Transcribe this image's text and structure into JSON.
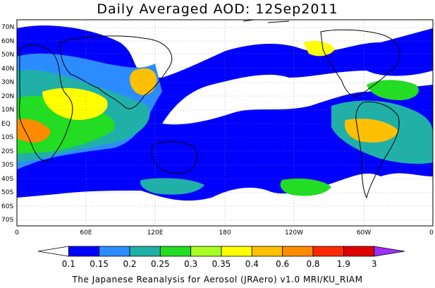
{
  "title": "Daily Averaged AOD: 12Sep2011",
  "lat_labels": [
    "70N",
    "60N",
    "50N",
    "40N",
    "30N",
    "20N",
    "10N",
    "EQ",
    "10S",
    "20S",
    "30S",
    "40S",
    "50S",
    "60S",
    "70S"
  ],
  "lon_labels": [
    "0",
    "60E",
    "120E",
    "180",
    "120W",
    "60W",
    "0"
  ],
  "colorbar": {
    "levels": [
      "0.1",
      "0.15",
      "0.2",
      "0.25",
      "0.3",
      "0.35",
      "0.4",
      "0.6",
      "0.8",
      "1.9",
      "3"
    ],
    "colors": [
      "#ffffff",
      "#0000ff",
      "#2b8cff",
      "#20b0a8",
      "#22dd22",
      "#a8ff22",
      "#ffff00",
      "#ffc000",
      "#ff8c00",
      "#ff2a00",
      "#e00000",
      "#9b30ff"
    ]
  },
  "credit": "The Japanese Reanalysis for Aerosol (JRAero) v1.0 MRI/KU_RIAM"
}
